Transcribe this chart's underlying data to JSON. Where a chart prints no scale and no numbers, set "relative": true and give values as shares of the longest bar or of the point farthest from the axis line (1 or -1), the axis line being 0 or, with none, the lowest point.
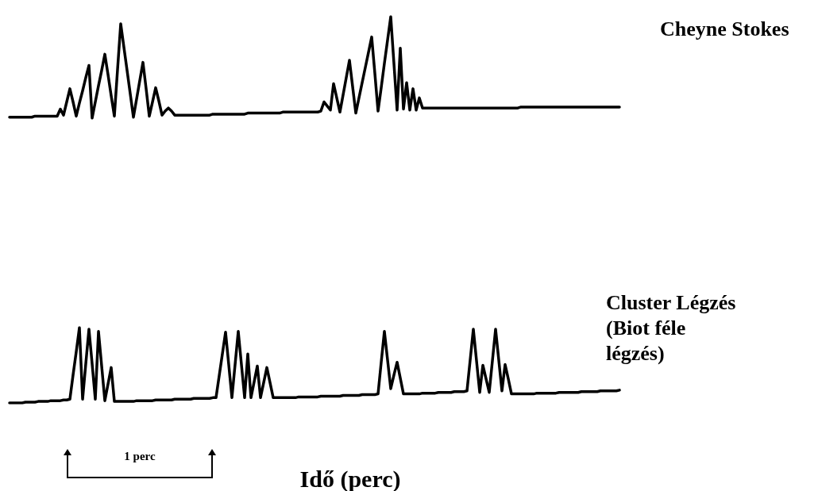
{
  "chart_data": [
    {
      "type": "line",
      "relative": true,
      "categories": [
        null,
        null,
        null,
        null,
        null,
        null,
        null,
        null,
        null,
        null,
        null,
        null,
        null,
        null,
        null,
        null,
        null,
        null,
        null,
        null,
        null,
        null,
        null,
        null,
        null,
        null,
        null,
        null,
        null,
        null,
        null,
        null,
        null,
        null,
        null,
        null,
        null,
        null,
        null,
        null,
        null,
        null,
        null,
        null,
        null,
        null,
        null,
        null,
        null,
        null,
        null,
        null,
        null,
        null,
        null,
        null,
        null,
        null,
        null,
        null,
        null,
        null,
        null,
        null,
        null,
        null,
        null,
        null,
        null,
        null,
        null,
        null,
        null,
        null,
        null,
        null,
        null,
        null,
        null,
        null,
        null,
        null,
        null,
        null,
        null,
        null,
        null,
        null,
        null,
        null,
        null,
        null,
        null,
        null,
        null,
        null,
        null,
        null,
        null,
        null,
        null,
        null,
        null,
        null,
        null,
        null,
        null,
        null,
        null,
        null,
        null,
        null,
        null,
        null,
        null,
        null,
        null,
        null,
        null,
        null,
        null,
        null,
        null,
        null,
        null,
        null,
        null,
        null,
        null,
        null,
        null,
        null,
        null,
        null,
        null,
        null,
        null,
        null,
        null,
        null,
        null,
        null,
        null,
        null,
        null,
        null,
        null,
        null,
        null,
        null,
        null,
        null,
        null,
        null,
        null,
        null,
        null,
        null,
        null,
        null,
        null,
        null,
        null,
        null,
        null,
        null,
        null,
        null,
        null,
        null,
        null,
        null,
        null,
        null,
        null,
        null,
        null,
        null,
        null,
        null,
        null,
        null,
        null,
        null,
        null,
        null,
        null,
        null,
        null,
        null,
        null,
        null,
        null
      ],
      "series": [
        {
          "name": "Cheyne Stokes",
          "color": "#000000",
          "values": [
            0.01,
            0.01,
            0.01,
            0.01,
            0.01,
            0.01,
            0.01,
            0.01,
            0.02,
            0.02,
            0.02,
            0.02,
            0.02,
            0.02,
            0.02,
            0.02,
            0.09,
            0.03,
            0.16,
            0.29,
            0.16,
            0.02,
            0.15,
            0.27,
            0.4,
            0.52,
            0,
            0.16,
            0.32,
            0.47,
            0.63,
            0.43,
            0.22,
            0.02,
            0.48,
            0.93,
            0.7,
            0.47,
            0.24,
            0.01,
            0.19,
            0.37,
            0.55,
            0.29,
            0.02,
            0.16,
            0.3,
            0.17,
            0.03,
            0.07,
            0.1,
            0.07,
            0.03,
            0.03,
            0.03,
            0.03,
            0.03,
            0.03,
            0.03,
            0.03,
            0.03,
            0.03,
            0.03,
            0.03,
            0.04,
            0.04,
            0.04,
            0.04,
            0.04,
            0.04,
            0.04,
            0.04,
            0.04,
            0.04,
            0.04,
            0.05,
            0.05,
            0.05,
            0.05,
            0.05,
            0.05,
            0.05,
            0.05,
            0.05,
            0.05,
            0.05,
            0.06,
            0.06,
            0.06,
            0.06,
            0.06,
            0.06,
            0.06,
            0.06,
            0.06,
            0.06,
            0.06,
            0.06,
            0.07,
            0.16,
            0.12,
            0.08,
            0.34,
            0.2,
            0.06,
            0.23,
            0.4,
            0.57,
            0.31,
            0.05,
            0.2,
            0.35,
            0.5,
            0.65,
            0.8,
            0.44,
            0.07,
            0.3,
            0.54,
            0.77,
            1,
            0.54,
            0.08,
            0.69,
            0.09,
            0.35,
            0.08,
            0.29,
            0.08,
            0.2,
            0.1,
            0.1,
            0.1,
            0.1,
            0.1,
            0.1,
            0.1,
            0.1,
            0.1,
            0.1,
            0.1,
            0.1,
            0.1,
            0.1,
            0.1,
            0.1,
            0.1,
            0.1,
            0.1,
            0.1,
            0.1,
            0.1,
            0.1,
            0.1,
            0.1,
            0.1,
            0.1,
            0.1,
            0.1,
            0.1,
            0.1,
            0.11,
            0.11,
            0.11,
            0.11,
            0.11,
            0.11,
            0.11,
            0.11,
            0.11,
            0.11,
            0.11,
            0.11,
            0.11,
            0.11,
            0.11,
            0.11,
            0.11,
            0.11,
            0.11,
            0.11,
            0.11,
            0.11,
            0.11,
            0.11,
            0.11,
            0.11,
            0.11,
            0.11,
            0.11,
            0.11,
            0.11,
            0.11
          ]
        }
      ]
    },
    {
      "type": "line",
      "xlabel": "Idő (perc)",
      "relative": true,
      "annotations": [
        "1 perc"
      ],
      "categories": [
        null,
        null,
        null,
        null,
        null,
        null,
        null,
        null,
        null,
        null,
        null,
        null,
        null,
        null,
        null,
        null,
        null,
        null,
        null,
        null,
        null,
        null,
        null,
        null,
        null,
        null,
        null,
        null,
        null,
        null,
        null,
        null,
        null,
        null,
        null,
        null,
        null,
        null,
        null,
        null,
        null,
        null,
        null,
        null,
        null,
        null,
        null,
        null,
        null,
        null,
        null,
        null,
        null,
        null,
        null,
        null,
        null,
        null,
        null,
        null,
        null,
        null,
        null,
        null,
        null,
        null,
        null,
        null,
        null,
        null,
        null,
        null,
        null,
        null,
        null,
        null,
        null,
        null,
        null,
        null,
        null,
        null,
        null,
        null,
        null,
        null,
        null,
        null,
        null,
        null,
        null,
        null,
        null,
        null,
        null,
        null,
        null,
        null,
        null,
        null,
        null,
        null,
        null,
        null,
        null,
        null,
        null,
        null,
        null,
        null,
        null,
        null,
        null,
        null,
        null,
        null,
        null,
        null,
        null,
        null,
        null,
        null,
        null,
        null,
        null,
        null,
        null,
        null,
        null,
        null,
        null,
        null,
        null,
        null,
        null,
        null,
        null,
        null,
        null,
        null,
        null,
        null,
        null,
        null,
        null,
        null,
        null,
        null,
        null,
        null,
        null,
        null,
        null,
        null,
        null,
        null,
        null,
        null,
        null,
        null,
        null,
        null,
        null,
        null,
        null,
        null,
        null,
        null,
        null,
        null,
        null,
        null,
        null,
        null,
        null,
        null,
        null,
        null,
        null,
        null,
        null,
        null,
        null,
        null,
        null,
        null,
        null,
        null,
        null,
        null,
        null,
        null,
        null
      ],
      "series": [
        {
          "name": "Cluster Légzés (Biot féle légzés)",
          "color": "#000000",
          "values": [
            0,
            0,
            0,
            0,
            0,
            0.01,
            0.01,
            0.01,
            0.01,
            0.02,
            0.02,
            0.02,
            0.02,
            0.03,
            0.03,
            0.03,
            0.03,
            0.04,
            0.04,
            0.05,
            0.37,
            0.68,
            1,
            0.05,
            0.52,
            0.98,
            0.52,
            0.05,
            0.95,
            0.49,
            0.03,
            0.25,
            0.47,
            0.02,
            0.02,
            0.02,
            0.02,
            0.02,
            0.02,
            0.02,
            0.03,
            0.03,
            0.03,
            0.03,
            0.03,
            0.03,
            0.04,
            0.04,
            0.04,
            0.04,
            0.04,
            0.04,
            0.05,
            0.05,
            0.05,
            0.05,
            0.05,
            0.05,
            0.06,
            0.06,
            0.06,
            0.06,
            0.06,
            0.06,
            0.07,
            0.07,
            0.36,
            0.65,
            0.94,
            0.51,
            0.07,
            0.51,
            0.95,
            0.51,
            0.07,
            0.65,
            0.07,
            0.28,
            0.49,
            0.07,
            0.27,
            0.47,
            0.27,
            0.07,
            0.07,
            0.07,
            0.07,
            0.07,
            0.07,
            0.07,
            0.07,
            0.08,
            0.08,
            0.08,
            0.08,
            0.08,
            0.08,
            0.08,
            0.09,
            0.09,
            0.09,
            0.09,
            0.09,
            0.09,
            0.09,
            0.1,
            0.1,
            0.1,
            0.1,
            0.1,
            0.1,
            0.11,
            0.11,
            0.11,
            0.11,
            0.11,
            0.12,
            0.54,
            0.95,
            0.57,
            0.19,
            0.37,
            0.54,
            0.33,
            0.12,
            0.12,
            0.12,
            0.12,
            0.12,
            0.12,
            0.13,
            0.13,
            0.13,
            0.13,
            0.13,
            0.14,
            0.14,
            0.14,
            0.14,
            0.14,
            0.15,
            0.15,
            0.15,
            0.15,
            0.16,
            0.57,
            0.98,
            0.56,
            0.14,
            0.5,
            0.32,
            0.14,
            0.56,
            0.98,
            0.57,
            0.16,
            0.51,
            0.32,
            0.12,
            0.12,
            0.12,
            0.12,
            0.12,
            0.12,
            0.12,
            0.12,
            0.13,
            0.13,
            0.13,
            0.13,
            0.13,
            0.13,
            0.13,
            0.14,
            0.14,
            0.14,
            0.14,
            0.14,
            0.14,
            0.14,
            0.15,
            0.15,
            0.15,
            0.15,
            0.15,
            0.15,
            0.16,
            0.16,
            0.16,
            0.16,
            0.16,
            0.16,
            0.17
          ]
        }
      ]
    }
  ]
}
